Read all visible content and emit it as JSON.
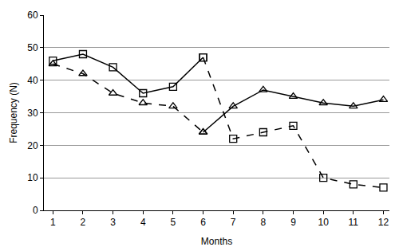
{
  "chart_data": {
    "type": "line",
    "x_label": "Months",
    "y_label": "Frequency (N)",
    "x": [
      1,
      2,
      3,
      4,
      5,
      6,
      7,
      8,
      9,
      10,
      11,
      12
    ],
    "xlim": [
      0.7,
      12.2
    ],
    "xticks": [
      1,
      2,
      3,
      4,
      5,
      6,
      7,
      8,
      9,
      10,
      11,
      12
    ],
    "ylim": [
      0,
      60
    ],
    "yticks": [
      0,
      10,
      20,
      30,
      40,
      50,
      60
    ],
    "grid": true,
    "series": [
      {
        "color": "#000000",
        "marker": "square",
        "line_style": "solid",
        "values": [
          46,
          48,
          44,
          36,
          38,
          47,
          null,
          null,
          null,
          null,
          null,
          null
        ]
      },
      {
        "color": "#000000",
        "marker": "square",
        "line_style": "dashed",
        "values": [
          null,
          null,
          null,
          null,
          null,
          47,
          22,
          24,
          26,
          10,
          8,
          7
        ]
      },
      {
        "color": "#000000",
        "marker": "triangle",
        "line_style": "dashed",
        "values": [
          45,
          42,
          36,
          33,
          32,
          24,
          null,
          null,
          null,
          null,
          null,
          null
        ]
      },
      {
        "color": "#000000",
        "marker": "triangle",
        "line_style": "solid",
        "values": [
          null,
          null,
          null,
          null,
          null,
          24,
          32,
          37,
          35,
          33,
          32,
          34
        ]
      }
    ]
  }
}
